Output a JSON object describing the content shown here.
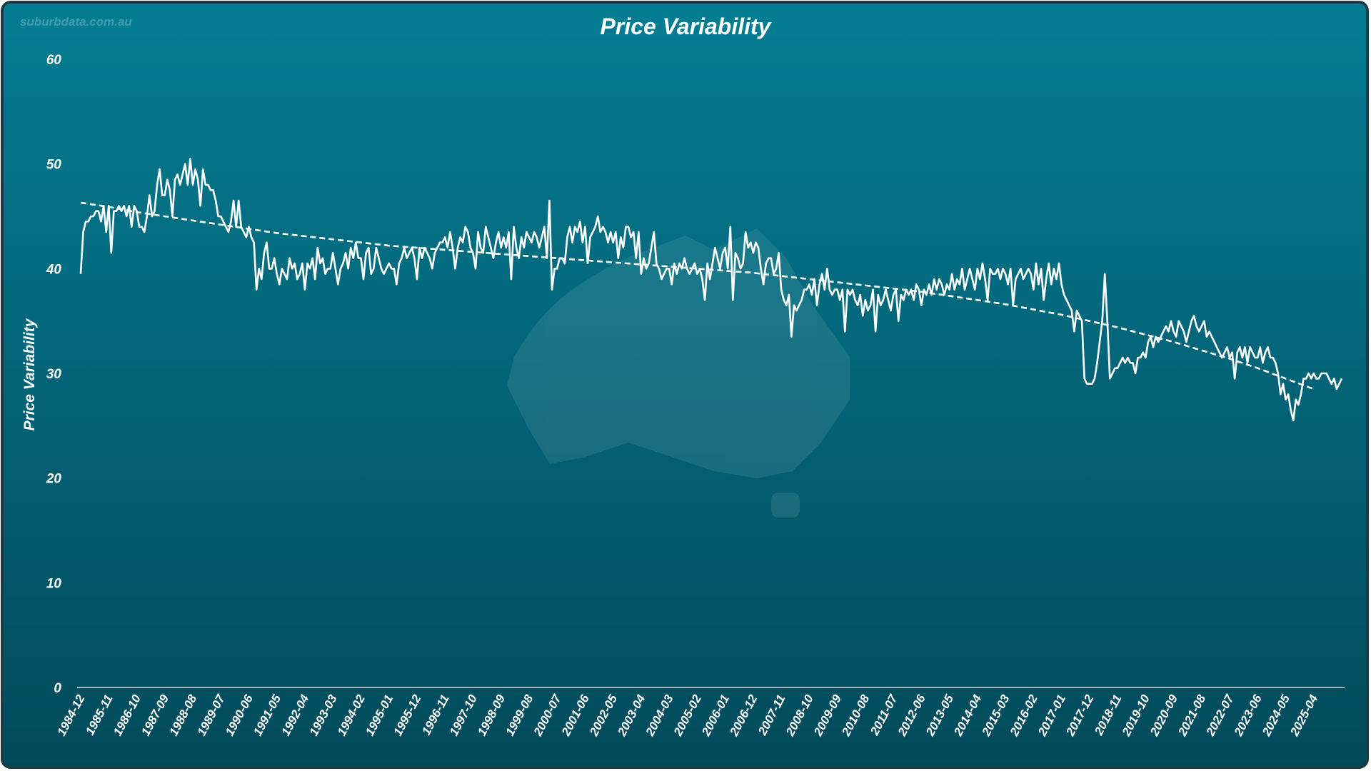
{
  "chart_data": {
    "type": "line",
    "title": "Price Variability",
    "watermark": "suburbdata.com.au",
    "y_label": "Price Variability",
    "color": "#ffffff",
    "ylim": [
      0,
      60
    ],
    "yticks": [
      0,
      10,
      20,
      30,
      40,
      50,
      60
    ],
    "grid": false,
    "categories": [
      "1984-12",
      null,
      null,
      null,
      null,
      null,
      null,
      null,
      null,
      null,
      null,
      "1985-11",
      null,
      null,
      null,
      null,
      null,
      null,
      null,
      null,
      null,
      null,
      "1986-10",
      null,
      null,
      null,
      null,
      null,
      null,
      null,
      null,
      null,
      null,
      "1987-09",
      null,
      null,
      null,
      null,
      null,
      null,
      null,
      null,
      null,
      null,
      "1988-08",
      null,
      null,
      null,
      null,
      null,
      null,
      null,
      null,
      null,
      null,
      "1989-07",
      null,
      null,
      null,
      null,
      null,
      null,
      null,
      null,
      null,
      null,
      "1990-06",
      null,
      null,
      null,
      null,
      null,
      null,
      null,
      null,
      null,
      null,
      "1991-05",
      null,
      null,
      null,
      null,
      null,
      null,
      null,
      null,
      null,
      null,
      "1992-04",
      null,
      null,
      null,
      null,
      null,
      null,
      null,
      null,
      null,
      null,
      "1993-03",
      null,
      null,
      null,
      null,
      null,
      null,
      null,
      null,
      null,
      null,
      "1994-02",
      null,
      null,
      null,
      null,
      null,
      null,
      null,
      null,
      null,
      null,
      "1995-01",
      null,
      null,
      null,
      null,
      null,
      null,
      null,
      null,
      null,
      null,
      "1995-12",
      null,
      null,
      null,
      null,
      null,
      null,
      null,
      null,
      null,
      null,
      "1996-11",
      null,
      null,
      null,
      null,
      null,
      null,
      null,
      null,
      null,
      null,
      "1997-10",
      null,
      null,
      null,
      null,
      null,
      null,
      null,
      null,
      null,
      null,
      "1998-09",
      null,
      null,
      null,
      null,
      null,
      null,
      null,
      null,
      null,
      null,
      "1999-08",
      null,
      null,
      null,
      null,
      null,
      null,
      null,
      null,
      null,
      null,
      "2000-07",
      null,
      null,
      null,
      null,
      null,
      null,
      null,
      null,
      null,
      null,
      "2001-06",
      null,
      null,
      null,
      null,
      null,
      null,
      null,
      null,
      null,
      null,
      "2002-05",
      null,
      null,
      null,
      null,
      null,
      null,
      null,
      null,
      null,
      null,
      "2003-04",
      null,
      null,
      null,
      null,
      null,
      null,
      null,
      null,
      null,
      null,
      "2004-03",
      null,
      null,
      null,
      null,
      null,
      null,
      null,
      null,
      null,
      null,
      "2005-02",
      null,
      null,
      null,
      null,
      null,
      null,
      null,
      null,
      null,
      null,
      "2006-01",
      null,
      null,
      null,
      null,
      null,
      null,
      null,
      null,
      null,
      null,
      "2006-12",
      null,
      null,
      null,
      null,
      null,
      null,
      null,
      null,
      null,
      null,
      "2007-11",
      null,
      null,
      null,
      null,
      null,
      null,
      null,
      null,
      null,
      null,
      "2008-10",
      null,
      null,
      null,
      null,
      null,
      null,
      null,
      null,
      null,
      null,
      "2009-09",
      null,
      null,
      null,
      null,
      null,
      null,
      null,
      null,
      null,
      null,
      "2010-08",
      null,
      null,
      null,
      null,
      null,
      null,
      null,
      null,
      null,
      null,
      "2011-07",
      null,
      null,
      null,
      null,
      null,
      null,
      null,
      null,
      null,
      null,
      "2012-06",
      null,
      null,
      null,
      null,
      null,
      null,
      null,
      null,
      null,
      null,
      "2013-05",
      null,
      null,
      null,
      null,
      null,
      null,
      null,
      null,
      null,
      null,
      "2014-04",
      null,
      null,
      null,
      null,
      null,
      null,
      null,
      null,
      null,
      null,
      "2015-03",
      null,
      null,
      null,
      null,
      null,
      null,
      null,
      null,
      null,
      null,
      "2016-02",
      null,
      null,
      null,
      null,
      null,
      null,
      null,
      null,
      null,
      null,
      "2017-01",
      null,
      null,
      null,
      null,
      null,
      null,
      null,
      null,
      null,
      null,
      "2017-12",
      null,
      null,
      null,
      null,
      null,
      null,
      null,
      null,
      null,
      null,
      "2018-11",
      null,
      null,
      null,
      null,
      null,
      null,
      null,
      null,
      null,
      null,
      "2019-10",
      null,
      null,
      null,
      null,
      null,
      null,
      null,
      null,
      null,
      null,
      "2020-09",
      null,
      null,
      null,
      null,
      null,
      null,
      null,
      null,
      null,
      null,
      "2021-08",
      null,
      null,
      null,
      null,
      null,
      null,
      null,
      null,
      null,
      null,
      "2022-07",
      null,
      null,
      null,
      null,
      null,
      null,
      null,
      null,
      null,
      null,
      "2023-06",
      null,
      null,
      null,
      null,
      null,
      null,
      null,
      null,
      null,
      null,
      "2024-05",
      null,
      null,
      null,
      null,
      null,
      null,
      null,
      null,
      null,
      null,
      "2025-04",
      null,
      null,
      null,
      null,
      null,
      null,
      null,
      null,
      null,
      null,
      null
    ],
    "values": [
      39.5,
      43.5,
      44.5,
      44.5,
      45,
      45,
      45.5,
      45.5,
      44.5,
      46,
      43.5,
      46,
      41.5,
      45.5,
      45.5,
      46,
      45.5,
      46,
      45,
      46,
      44,
      46,
      45.5,
      44,
      44,
      43.5,
      45,
      47,
      45,
      45.5,
      48,
      49.5,
      47,
      47,
      48.5,
      47.5,
      45,
      48.5,
      49,
      48,
      49,
      50,
      48,
      50.5,
      48,
      49.5,
      48.5,
      46,
      49.5,
      48,
      48,
      47.5,
      47.5,
      46.5,
      45,
      45,
      44.5,
      44,
      43.5,
      44.5,
      46.5,
      44,
      46.5,
      44,
      43.5,
      43,
      44,
      43,
      42.5,
      38,
      40,
      39,
      41.5,
      42.5,
      40,
      40,
      41,
      39.5,
      38.5,
      40,
      39.5,
      39,
      41,
      40,
      40.5,
      39,
      39.5,
      40.5,
      38,
      40.5,
      40,
      41,
      39,
      42,
      40.5,
      41,
      39.5,
      40,
      40,
      41.5,
      40,
      38.5,
      40,
      40.5,
      41.5,
      40,
      42,
      41,
      42.5,
      41,
      41,
      39,
      41.5,
      42,
      39.5,
      40,
      42,
      41,
      40,
      39.5,
      40,
      40.5,
      40,
      40,
      38.5,
      40.5,
      41,
      42,
      41,
      41.5,
      42,
      41,
      39,
      42,
      41,
      42,
      41.5,
      41,
      40,
      41.5,
      42,
      42.5,
      42.5,
      43,
      42,
      43.5,
      42,
      40,
      42,
      43,
      42.5,
      44,
      43.5,
      42,
      41.5,
      40,
      43.5,
      42,
      41.5,
      44,
      43,
      42,
      41,
      42.5,
      43.5,
      42,
      43,
      42,
      43.5,
      39,
      44,
      42,
      41,
      43,
      42,
      43.5,
      43,
      42.5,
      43.5,
      43,
      42,
      43,
      44,
      41,
      46.5,
      38,
      40,
      40,
      41,
      41,
      40.5,
      43,
      44,
      42.5,
      44,
      43.5,
      44.5,
      42.5,
      44,
      40.5,
      43,
      43.5,
      44,
      45,
      43.5,
      44,
      43.5,
      42.5,
      43.5,
      42.5,
      43.5,
      41,
      43,
      42,
      44,
      44,
      43,
      43.5,
      41,
      43.5,
      39.5,
      41,
      40,
      40.5,
      42,
      43.5,
      40.5,
      40,
      39,
      39.5,
      40,
      40,
      38.5,
      40.5,
      39.5,
      40.5,
      40,
      41,
      40,
      39.5,
      40,
      40.5,
      39.5,
      40,
      39,
      37,
      40.5,
      39,
      40.5,
      42,
      41,
      40,
      41.5,
      42,
      40,
      44,
      37,
      41.5,
      41,
      40,
      40.5,
      43.5,
      42,
      42.5,
      41.5,
      42.5,
      42,
      40,
      38.5,
      40.5,
      41,
      41,
      39.5,
      40,
      41.5,
      38,
      37,
      36.5,
      37.5,
      33.5,
      36.5,
      36,
      36.5,
      37,
      38,
      38,
      38.5,
      37.5,
      39,
      36.5,
      38.5,
      39.5,
      38,
      40,
      38,
      37.5,
      38,
      38,
      37,
      38,
      34,
      38,
      37.5,
      38,
      37,
      36.5,
      37.5,
      35.5,
      37,
      36,
      36.5,
      38,
      34,
      37.5,
      36.5,
      37,
      38,
      37,
      36,
      37.5,
      38,
      35,
      37.5,
      37,
      38,
      37.5,
      38,
      37,
      38.5,
      38,
      36.5,
      38,
      37.5,
      38.5,
      37.5,
      39,
      38,
      39,
      38.5,
      37.5,
      38.5,
      38,
      39.5,
      38,
      39,
      38.5,
      40,
      38,
      39,
      40,
      39,
      38,
      40,
      39,
      40.5,
      39,
      37,
      40,
      39.5,
      39.5,
      40,
      39,
      40,
      39.5,
      38.5,
      40,
      36.5,
      39,
      39.5,
      40,
      39,
      39.5,
      40,
      39.5,
      38,
      40.5,
      38.5,
      40,
      37,
      39,
      40.5,
      38.5,
      40,
      39,
      40.5,
      38.5,
      37.5,
      37,
      36.5,
      36,
      34,
      36,
      35.5,
      35,
      29.5,
      29,
      29,
      29,
      29.5,
      31,
      33,
      35,
      39.5,
      35,
      29.5,
      30,
      30.5,
      30.5,
      31,
      31.5,
      31,
      31.5,
      31,
      31,
      30,
      31.5,
      31.5,
      32,
      31.5,
      33,
      33.5,
      32.5,
      33.5,
      33,
      33.5,
      34,
      34.5,
      34,
      35,
      34,
      33.5,
      35,
      34.5,
      34,
      33,
      34,
      35,
      35.5,
      34.5,
      34,
      34.5,
      35,
      33.5,
      34,
      33.5,
      33,
      32.5,
      32,
      31.5,
      32,
      32.5,
      31.5,
      32,
      29.5,
      32,
      32.5,
      31.5,
      32.5,
      31,
      32.5,
      32,
      31.5,
      31.5,
      32.5,
      31,
      32,
      32.5,
      31.5,
      31.5,
      31,
      30,
      28,
      29,
      27.5,
      28,
      26.5,
      25.5,
      27.5,
      27,
      28,
      29.5,
      29.5,
      30,
      29.5,
      30,
      29.5,
      29.5,
      30,
      30,
      30,
      29.5,
      29,
      29.5,
      28.5,
      29,
      29.5
    ],
    "trendline": {
      "color": "#ffffff",
      "dashed": true,
      "values": [
        46.3,
        45.9,
        45.4,
        45.0,
        44.6,
        44.2,
        43.8,
        43.4,
        43.1,
        42.8,
        42.5,
        42.2,
        42.0,
        41.8,
        41.6,
        41.4,
        41.2,
        41.0,
        40.8,
        40.6,
        40.4,
        40.2,
        40.0,
        39.8,
        39.6,
        39.3,
        39.0,
        38.7,
        38.4,
        38.1,
        37.8,
        37.4,
        37.0,
        36.6,
        36.1,
        35.6,
        35.0,
        34.4,
        33.7,
        33.0,
        32.2,
        31.4,
        30.5,
        29.5,
        28.5
      ]
    }
  }
}
